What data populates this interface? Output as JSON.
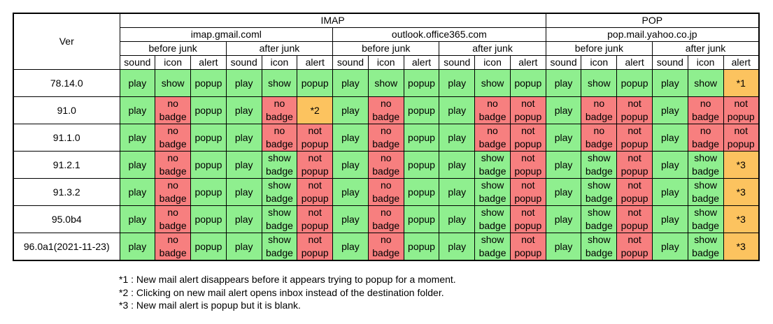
{
  "header": {
    "ver": "Ver",
    "protocols": [
      {
        "label": "IMAP",
        "servers": [
          {
            "label": "imap.gmail.coml",
            "groups": [
              {
                "label": "before junk",
                "columns": [
                  "sound",
                  "icon",
                  "alert"
                ]
              },
              {
                "label": "after junk",
                "columns": [
                  "sound",
                  "icon",
                  "alert"
                ]
              }
            ]
          },
          {
            "label": "outlook.office365.com",
            "groups": [
              {
                "label": "before junk",
                "columns": [
                  "sound",
                  "icon",
                  "alert"
                ]
              },
              {
                "label": "after junk",
                "columns": [
                  "sound",
                  "icon",
                  "alert"
                ]
              }
            ]
          }
        ]
      },
      {
        "label": "POP",
        "servers": [
          {
            "label": "pop.mail.yahoo.co.jp",
            "groups": [
              {
                "label": "before junk",
                "columns": [
                  "sound",
                  "icon",
                  "alert"
                ]
              },
              {
                "label": "after junk",
                "columns": [
                  "sound",
                  "icon",
                  "alert"
                ]
              }
            ]
          }
        ]
      }
    ]
  },
  "rows": [
    {
      "ver": "78.14.0",
      "cells": [
        "play",
        "show",
        "popup",
        "play",
        "show",
        "popup",
        "play",
        "show",
        "popup",
        "play",
        "show",
        "popup",
        "play",
        "show",
        "popup",
        "play",
        "show",
        "*1"
      ],
      "colors": [
        "#8fef8f",
        "#8fef8f",
        "#8fef8f",
        "#8fef8f",
        "#8fef8f",
        "#8fef8f",
        "#8fef8f",
        "#8fef8f",
        "#8fef8f",
        "#8fef8f",
        "#8fef8f",
        "#8fef8f",
        "#8fef8f",
        "#8fef8f",
        "#8fef8f",
        "#8fef8f",
        "#8fef8f",
        "#fcc35f"
      ]
    },
    {
      "ver": "91.0",
      "cells": [
        "play",
        "no badge",
        "popup",
        "play",
        "no badge",
        "*2",
        "play",
        "no badge",
        "popup",
        "play",
        "no badge",
        "not popup",
        "play",
        "no badge",
        "not popup",
        "play",
        "no badge",
        "not popup"
      ],
      "colors": [
        "#8fef8f",
        "#f77f7f",
        "#8fef8f",
        "#8fef8f",
        "#f77f7f",
        "#fcc35f",
        "#8fef8f",
        "#f77f7f",
        "#8fef8f",
        "#8fef8f",
        "#f77f7f",
        "#f77f7f",
        "#8fef8f",
        "#f77f7f",
        "#f77f7f",
        "#8fef8f",
        "#f77f7f",
        "#f77f7f"
      ]
    },
    {
      "ver": "91.1.0",
      "cells": [
        "play",
        "no badge",
        "popup",
        "play",
        "no badge",
        "not popup",
        "play",
        "no badge",
        "popup",
        "play",
        "no badge",
        "not popup",
        "play",
        "no badge",
        "not popup",
        "play",
        "no badge",
        "not popup"
      ],
      "colors": [
        "#8fef8f",
        "#f77f7f",
        "#8fef8f",
        "#8fef8f",
        "#f77f7f",
        "#f77f7f",
        "#8fef8f",
        "#f77f7f",
        "#8fef8f",
        "#8fef8f",
        "#f77f7f",
        "#f77f7f",
        "#8fef8f",
        "#f77f7f",
        "#f77f7f",
        "#8fef8f",
        "#f77f7f",
        "#f77f7f"
      ]
    },
    {
      "ver": "91.2.1",
      "cells": [
        "play",
        "no badge",
        "popup",
        "play",
        "show badge",
        "not popup",
        "play",
        "no badge",
        "popup",
        "play",
        "show badge",
        "not popup",
        "play",
        "show badge",
        "not popup",
        "play",
        "show badge",
        "*3"
      ],
      "colors": [
        "#8fef8f",
        "#f77f7f",
        "#8fef8f",
        "#8fef8f",
        "#8fef8f",
        "#f77f7f",
        "#8fef8f",
        "#f77f7f",
        "#8fef8f",
        "#8fef8f",
        "#8fef8f",
        "#f77f7f",
        "#8fef8f",
        "#8fef8f",
        "#f77f7f",
        "#8fef8f",
        "#8fef8f",
        "#fcc35f"
      ]
    },
    {
      "ver": "91.3.2",
      "cells": [
        "play",
        "no badge",
        "popup",
        "play",
        "show badge",
        "not popup",
        "play",
        "no badge",
        "popup",
        "play",
        "show badge",
        "not popup",
        "play",
        "show badge",
        "not popup",
        "play",
        "show badge",
        "*3"
      ],
      "colors": [
        "#8fef8f",
        "#f77f7f",
        "#8fef8f",
        "#8fef8f",
        "#8fef8f",
        "#f77f7f",
        "#8fef8f",
        "#f77f7f",
        "#8fef8f",
        "#8fef8f",
        "#8fef8f",
        "#f77f7f",
        "#8fef8f",
        "#8fef8f",
        "#f77f7f",
        "#8fef8f",
        "#8fef8f",
        "#fcc35f"
      ]
    },
    {
      "ver": "95.0b4",
      "cells": [
        "play",
        "no badge",
        "popup",
        "play",
        "show badge",
        "not popup",
        "play",
        "no badge",
        "popup",
        "play",
        "show badge",
        "not popup",
        "play",
        "show badge",
        "not popup",
        "play",
        "show badge",
        "*3"
      ],
      "colors": [
        "#8fef8f",
        "#f77f7f",
        "#8fef8f",
        "#8fef8f",
        "#8fef8f",
        "#f77f7f",
        "#8fef8f",
        "#f77f7f",
        "#8fef8f",
        "#8fef8f",
        "#8fef8f",
        "#f77f7f",
        "#8fef8f",
        "#8fef8f",
        "#f77f7f",
        "#8fef8f",
        "#8fef8f",
        "#fcc35f"
      ]
    },
    {
      "ver": "96.0a1(2021-11-23)",
      "cells": [
        "play",
        "no badge",
        "popup",
        "play",
        "show badge",
        "not popup",
        "play",
        "no badge",
        "popup",
        "play",
        "show badge",
        "not popup",
        "play",
        "show badge",
        "not popup",
        "play",
        "show badge",
        "*3"
      ],
      "colors": [
        "#8fef8f",
        "#f77f7f",
        "#8fef8f",
        "#8fef8f",
        "#8fef8f",
        "#f77f7f",
        "#8fef8f",
        "#f77f7f",
        "#8fef8f",
        "#8fef8f",
        "#8fef8f",
        "#f77f7f",
        "#8fef8f",
        "#8fef8f",
        "#f77f7f",
        "#8fef8f",
        "#8fef8f",
        "#fcc35f"
      ]
    }
  ],
  "notes": [
    "*1 : New mail alert disappears before it appears trying to popup for a moment.",
    "*2 : Clicking on new mail alert opens inbox instead of the destination folder.",
    "*3 : New mail alert is popup but it is blank."
  ]
}
